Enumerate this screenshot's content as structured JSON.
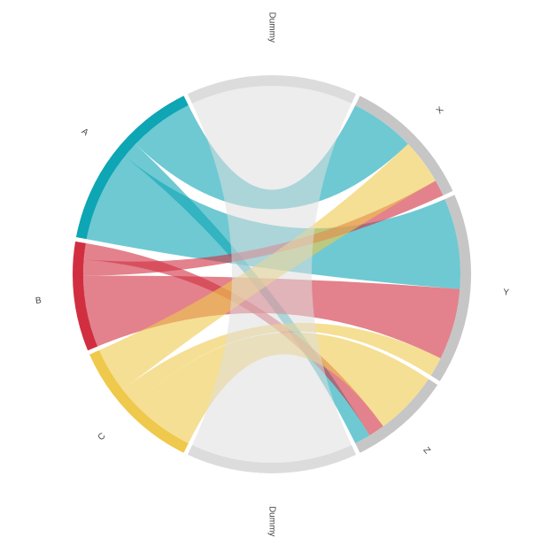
{
  "chart_data": {
    "type": "chord",
    "groups": [
      {
        "name": "Dummy",
        "color": "#dcdcdc"
      },
      {
        "name": "X",
        "color": "#c6c6c6"
      },
      {
        "name": "Y",
        "color": "#c6c6c6"
      },
      {
        "name": "Z",
        "color": "#c6c6c6"
      },
      {
        "name": "Dummy",
        "color": "#dcdcdc"
      },
      {
        "name": "C",
        "color": "#efc94c"
      },
      {
        "name": "B",
        "color": "#d12f40"
      },
      {
        "name": "A",
        "color": "#0ea5b5"
      }
    ],
    "flows": [
      {
        "source": 7,
        "target": 1,
        "value": 20,
        "color": "#0ea5b5"
      },
      {
        "source": 7,
        "target": 2,
        "value": 28,
        "color": "#0ea5b5"
      },
      {
        "source": 7,
        "target": 3,
        "value": 5,
        "color": "#0ea5b5"
      },
      {
        "source": 6,
        "target": 1,
        "value": 5,
        "color": "#d12f40"
      },
      {
        "source": 6,
        "target": 2,
        "value": 22,
        "color": "#d12f40"
      },
      {
        "source": 6,
        "target": 3,
        "value": 5,
        "color": "#d12f40"
      },
      {
        "source": 5,
        "target": 1,
        "value": 14,
        "color": "#efc94c"
      },
      {
        "source": 5,
        "target": 2,
        "value": 6,
        "color": "#efc94c"
      },
      {
        "source": 5,
        "target": 3,
        "value": 20,
        "color": "#efc94c"
      },
      {
        "source": 0,
        "target": 4,
        "value": 50,
        "color": "#dedede"
      }
    ]
  }
}
